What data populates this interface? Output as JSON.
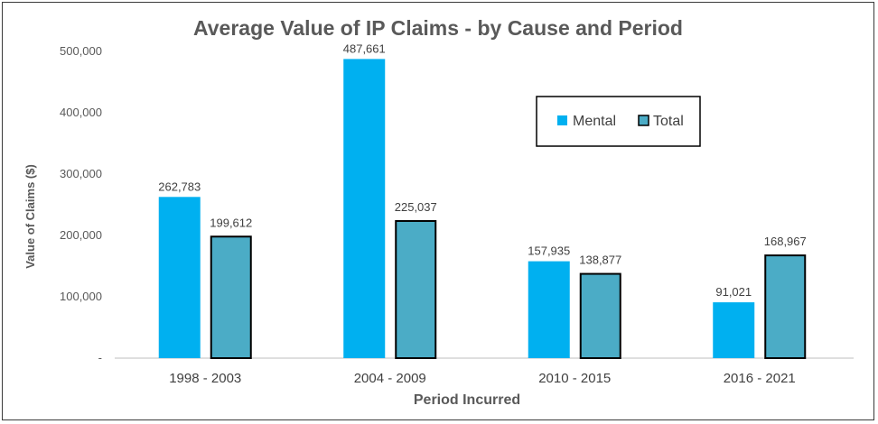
{
  "colors": {
    "mental": "#00b0f0",
    "total": "#4bacc6",
    "total_border": "#000000",
    "axis": "#bfbfbf"
  },
  "chart_data": {
    "type": "bar",
    "title": "Average Value of IP Claims - by Cause and Period",
    "xlabel": "Period Incurred",
    "ylabel": "Value of Claims ($)",
    "categories": [
      "1998 - 2003",
      "2004 - 2009",
      "2010 - 2015",
      "2016 - 2021"
    ],
    "series": [
      {
        "name": "Mental",
        "values": [
          262783,
          487661,
          157935,
          91021
        ],
        "labels": [
          "262,783",
          "487,661",
          "157,935",
          "91,021"
        ]
      },
      {
        "name": "Total",
        "values": [
          199612,
          225037,
          138877,
          168967
        ],
        "labels": [
          "199,612",
          "225,037",
          "138,877",
          "168,967"
        ]
      }
    ],
    "ylim": [
      0,
      500000
    ],
    "yticks": [
      0,
      100000,
      200000,
      300000,
      400000,
      500000
    ],
    "ytick_labels": [
      "-",
      "100,000",
      "200,000",
      "300,000",
      "400,000",
      "500,000"
    ],
    "grid": false,
    "legend": "center-right"
  }
}
